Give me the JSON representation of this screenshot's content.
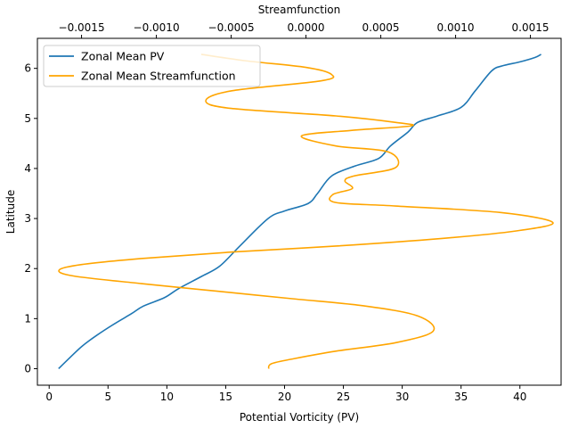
{
  "chart_data": {
    "type": "line",
    "xlabel": "Potential Vorticity (PV)",
    "ylabel": "Latitude",
    "x2label": "Streamfunction",
    "xlim": [
      -1,
      43.5
    ],
    "ylim": [
      -0.33,
      6.6
    ],
    "x2lim": [
      -0.001795,
      0.001705
    ],
    "xticks": [
      0,
      5,
      10,
      15,
      20,
      25,
      30,
      35,
      40
    ],
    "yticks": [
      0,
      1,
      2,
      3,
      4,
      5,
      6
    ],
    "x2ticks": [
      {
        "value": -0.0015,
        "label": "−0.0015"
      },
      {
        "value": -0.001,
        "label": "−0.0010"
      },
      {
        "value": -0.0005,
        "label": "−0.0005"
      },
      {
        "value": 0.0,
        "label": "0.0000"
      },
      {
        "value": 0.0005,
        "label": "0.0005"
      },
      {
        "value": 0.001,
        "label": "0.0010"
      },
      {
        "value": 0.0015,
        "label": "0.0015"
      }
    ],
    "grid": false,
    "legend_position": "top-left",
    "series": [
      {
        "name": "Zonal Mean PV",
        "axis": "bottom",
        "color": "#1f77b4",
        "x": [
          0.8,
          1.8,
          2.8,
          4.0,
          5.5,
          7.0,
          8.0,
          9.8,
          11.0,
          13.0,
          14.5,
          16.2,
          18.6,
          20.0,
          22.0,
          22.8,
          24.0,
          26.0,
          28.0,
          29.0,
          30.5,
          31.3,
          33.0,
          35.0,
          36.2,
          37.6,
          38.5,
          40.0,
          41.3,
          41.8
        ],
        "y": [
          0.0,
          0.23,
          0.45,
          0.66,
          0.89,
          1.1,
          1.25,
          1.42,
          1.6,
          1.85,
          2.05,
          2.45,
          3.0,
          3.15,
          3.3,
          3.5,
          3.85,
          4.05,
          4.2,
          4.45,
          4.73,
          4.92,
          5.05,
          5.22,
          5.55,
          5.95,
          6.05,
          6.13,
          6.22,
          6.28
        ]
      },
      {
        "name": "Zonal Mean Streamfunction",
        "axis": "top",
        "color": "#ffa500",
        "x": [
          -0.00025,
          -0.00023,
          -8e-05,
          0.0002,
          0.0006,
          0.00085,
          0.00075,
          0.0004,
          -0.0001,
          -0.0006,
          -0.0011,
          -0.00155,
          -0.00165,
          -0.0015,
          -0.0011,
          -0.0005,
          0.0002,
          0.0009,
          0.0014,
          0.00165,
          0.0013,
          0.0006,
          0.0002,
          0.00018,
          0.00031,
          0.00026,
          0.00032,
          0.0006,
          0.00055,
          0.0002,
          -3e-05,
          0.0003,
          0.0007,
          0.0006,
          0.0002,
          -0.0005,
          -0.00067,
          -0.0005,
          0.0001,
          0.00017,
          0.0,
          -0.0004,
          -0.0007
        ],
        "y": [
          0.0,
          0.1,
          0.2,
          0.35,
          0.52,
          0.75,
          1.05,
          1.25,
          1.4,
          1.55,
          1.7,
          1.85,
          1.97,
          2.08,
          2.2,
          2.33,
          2.45,
          2.6,
          2.75,
          2.92,
          3.12,
          3.25,
          3.32,
          3.48,
          3.6,
          3.75,
          3.85,
          4.02,
          4.33,
          4.45,
          4.65,
          4.76,
          4.85,
          4.92,
          5.05,
          5.2,
          5.35,
          5.55,
          5.75,
          5.88,
          6.02,
          6.15,
          6.28
        ]
      }
    ]
  }
}
